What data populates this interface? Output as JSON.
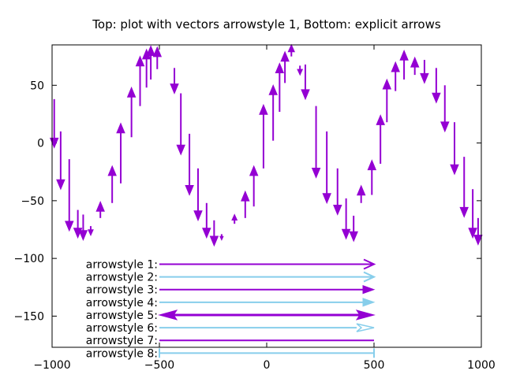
{
  "chart_data": {
    "type": "vector",
    "title": "Top: plot with vectors arrowstyle 1, Bottom: explicit arrows",
    "xlim": [
      -1000,
      1000
    ],
    "ylim": [
      -177,
      85
    ],
    "x_ticks": [
      -1000,
      -500,
      0,
      500,
      1000
    ],
    "x_tick_labels": [
      "−1000",
      "−500",
      "0",
      "500",
      "1000"
    ],
    "y_ticks": [
      50,
      0,
      -50,
      -100,
      -150
    ],
    "y_tick_labels": [
      "50",
      "0",
      "−50",
      "−100",
      "−150"
    ],
    "vector_color": "#9400d3",
    "vectors": [
      {
        "x": -990,
        "y": 38,
        "dy": -42
      },
      {
        "x": -960,
        "y": 10,
        "dy": -50
      },
      {
        "x": -920,
        "y": -14,
        "dy": -62
      },
      {
        "x": -880,
        "y": -58,
        "dy": -24
      },
      {
        "x": -855,
        "y": -62,
        "dy": -22
      },
      {
        "x": -820,
        "y": -72,
        "dy": -8
      },
      {
        "x": -775,
        "y": -65,
        "dy": 14
      },
      {
        "x": -720,
        "y": -52,
        "dy": 32
      },
      {
        "x": -680,
        "y": -35,
        "dy": 52
      },
      {
        "x": -630,
        "y": 5,
        "dy": 43
      },
      {
        "x": -590,
        "y": 32,
        "dy": 43
      },
      {
        "x": -560,
        "y": 48,
        "dy": 33
      },
      {
        "x": -540,
        "y": 55,
        "dy": 29
      },
      {
        "x": -510,
        "y": 64,
        "dy": 19
      },
      {
        "x": -430,
        "y": 65,
        "dy": -22
      },
      {
        "x": -400,
        "y": 43,
        "dy": -53
      },
      {
        "x": -360,
        "y": 8,
        "dy": -53
      },
      {
        "x": -320,
        "y": -22,
        "dy": -45
      },
      {
        "x": -280,
        "y": -52,
        "dy": -30
      },
      {
        "x": -245,
        "y": -67,
        "dy": -22
      },
      {
        "x": -210,
        "y": -79,
        "dy": -5
      },
      {
        "x": -150,
        "y": -70,
        "dy": 8
      },
      {
        "x": -100,
        "y": -65,
        "dy": 23
      },
      {
        "x": -60,
        "y": -55,
        "dy": 35
      },
      {
        "x": -15,
        "y": -22,
        "dy": 55
      },
      {
        "x": 30,
        "y": 2,
        "dy": 48
      },
      {
        "x": 60,
        "y": 27,
        "dy": 42
      },
      {
        "x": 85,
        "y": 52,
        "dy": 27
      },
      {
        "x": 115,
        "y": 75,
        "dy": 10
      },
      {
        "x": 155,
        "y": 67,
        "dy": -8
      },
      {
        "x": 180,
        "y": 68,
        "dy": -30
      },
      {
        "x": 230,
        "y": 32,
        "dy": -62
      },
      {
        "x": 280,
        "y": 10,
        "dy": -62
      },
      {
        "x": 330,
        "y": -22,
        "dy": -40
      },
      {
        "x": 370,
        "y": -48,
        "dy": -35
      },
      {
        "x": 405,
        "y": -63,
        "dy": -22
      },
      {
        "x": 440,
        "y": -52,
        "dy": 15
      },
      {
        "x": 490,
        "y": -45,
        "dy": 30
      },
      {
        "x": 530,
        "y": -18,
        "dy": 42
      },
      {
        "x": 560,
        "y": 18,
        "dy": 37
      },
      {
        "x": 600,
        "y": 45,
        "dy": 25
      },
      {
        "x": 640,
        "y": 55,
        "dy": 25
      },
      {
        "x": 690,
        "y": 59,
        "dy": 15
      },
      {
        "x": 735,
        "y": 72,
        "dy": -20
      },
      {
        "x": 790,
        "y": 65,
        "dy": -30
      },
      {
        "x": 830,
        "y": 50,
        "dy": -40
      },
      {
        "x": 875,
        "y": 18,
        "dy": -45
      },
      {
        "x": 920,
        "y": -12,
        "dy": -52
      },
      {
        "x": 960,
        "y": -40,
        "dy": -42
      },
      {
        "x": 985,
        "y": -65,
        "dy": -23
      }
    ],
    "arrows": [
      {
        "label": "arrowstyle 1:",
        "y": -105,
        "x1": -500,
        "x2": 500,
        "style": 1,
        "color": "#9400d3"
      },
      {
        "label": "arrowstyle 2:",
        "y": -116,
        "x1": -500,
        "x2": 500,
        "style": 2,
        "color": "#87ceeb"
      },
      {
        "label": "arrowstyle 3:",
        "y": -127,
        "x1": -500,
        "x2": 500,
        "style": 3,
        "color": "#9400d3"
      },
      {
        "label": "arrowstyle 4:",
        "y": -138,
        "x1": -500,
        "x2": 500,
        "style": 4,
        "color": "#87ceeb"
      },
      {
        "label": "arrowstyle 5:",
        "y": -149,
        "x1": -500,
        "x2": 500,
        "style": 5,
        "color": "#9400d3"
      },
      {
        "label": "arrowstyle 6:",
        "y": -160,
        "x1": -500,
        "x2": 500,
        "style": 6,
        "color": "#87ceeb"
      },
      {
        "label": "arrowstyle 7:",
        "y": -171,
        "x1": -500,
        "x2": 500,
        "style": 7,
        "color": "#9400d3"
      },
      {
        "label": "arrowstyle 8:",
        "y": -182,
        "x1": -500,
        "x2": 500,
        "style": 8,
        "color": "#87ceeb"
      }
    ]
  }
}
